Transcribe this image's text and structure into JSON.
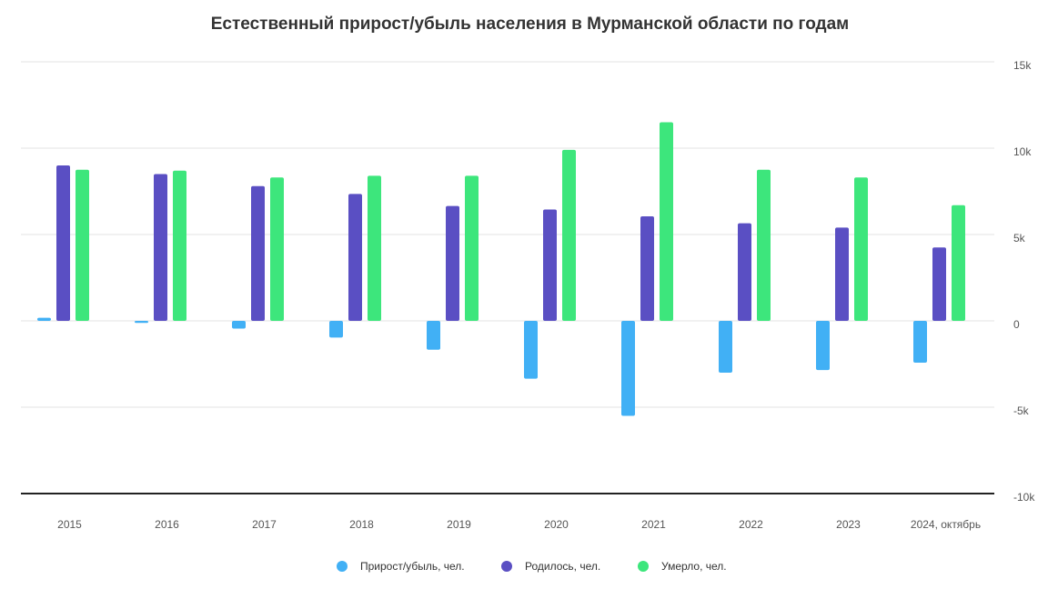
{
  "chart_data": {
    "type": "bar",
    "title": "Естественный прирост/убыль населения в Мурманской области по годам",
    "categories": [
      "2015",
      "2016",
      "2017",
      "2018",
      "2019",
      "2020",
      "2021",
      "2022",
      "2023",
      "2024, октябрь"
    ],
    "series": [
      {
        "name": "Прирост/убыль, чел.",
        "color": "#41b0f5",
        "values": [
          180,
          -120,
          -450,
          -970,
          -1670,
          -3350,
          -5500,
          -3000,
          -2850,
          -2420
        ]
      },
      {
        "name": "Родилось, чел.",
        "color": "#5a4fc3",
        "values": [
          9000,
          8500,
          7800,
          7350,
          6650,
          6450,
          6050,
          5650,
          5400,
          4250
        ]
      },
      {
        "name": "Умерло, чел.",
        "color": "#3de67c",
        "values": [
          8750,
          8700,
          8300,
          8400,
          8400,
          9900,
          11500,
          8750,
          8300,
          6700
        ]
      }
    ],
    "ylim": [
      -10000,
      15000
    ],
    "yticks": [
      {
        "value": 15000,
        "label": "15k"
      },
      {
        "value": 10000,
        "label": "10k"
      },
      {
        "value": 5000,
        "label": "5k"
      },
      {
        "value": 0,
        "label": "0"
      },
      {
        "value": -5000,
        "label": "-5k"
      },
      {
        "value": -10000,
        "label": "-10k"
      }
    ],
    "y_axis_position": "right",
    "grid": true,
    "legend_position": "bottom-center"
  }
}
